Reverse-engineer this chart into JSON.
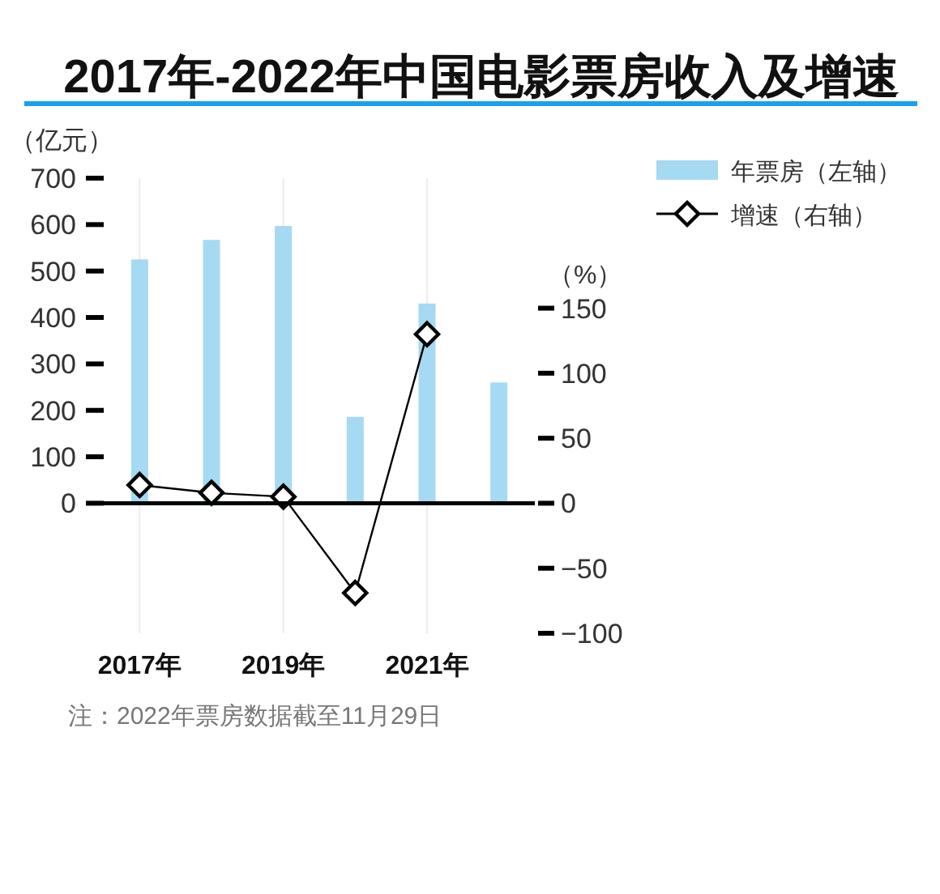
{
  "chart_data": {
    "type": "bar",
    "title": "2017年-2022年中国电影票房收入及增速",
    "ylabel": "（亿元）",
    "y2label": "（%）",
    "categories": [
      "2017年",
      null,
      "2019年",
      null,
      "2021年",
      null
    ],
    "series": [
      {
        "name": "年票房（左轴）",
        "color": "#a6d9f2",
        "values": [
          525,
          567,
          597,
          186,
          430,
          260
        ]
      },
      {
        "name": "增速（右轴）",
        "type": "line",
        "axis": "y2",
        "color": "#000000",
        "values": [
          14,
          8,
          5,
          -69,
          130,
          null
        ]
      }
    ],
    "marker": "diamond",
    "ylim": [
      -280,
      700
    ],
    "yticks": [
      0,
      100,
      200,
      300,
      400,
      500,
      600,
      700
    ],
    "y2lim": [
      -100,
      250
    ],
    "y2ticks": [
      -100,
      -50,
      0,
      50,
      100,
      150
    ],
    "grid": "x",
    "legend": "top right",
    "annotations": [
      "注：2022年票房数据截至11月29日"
    ]
  }
}
